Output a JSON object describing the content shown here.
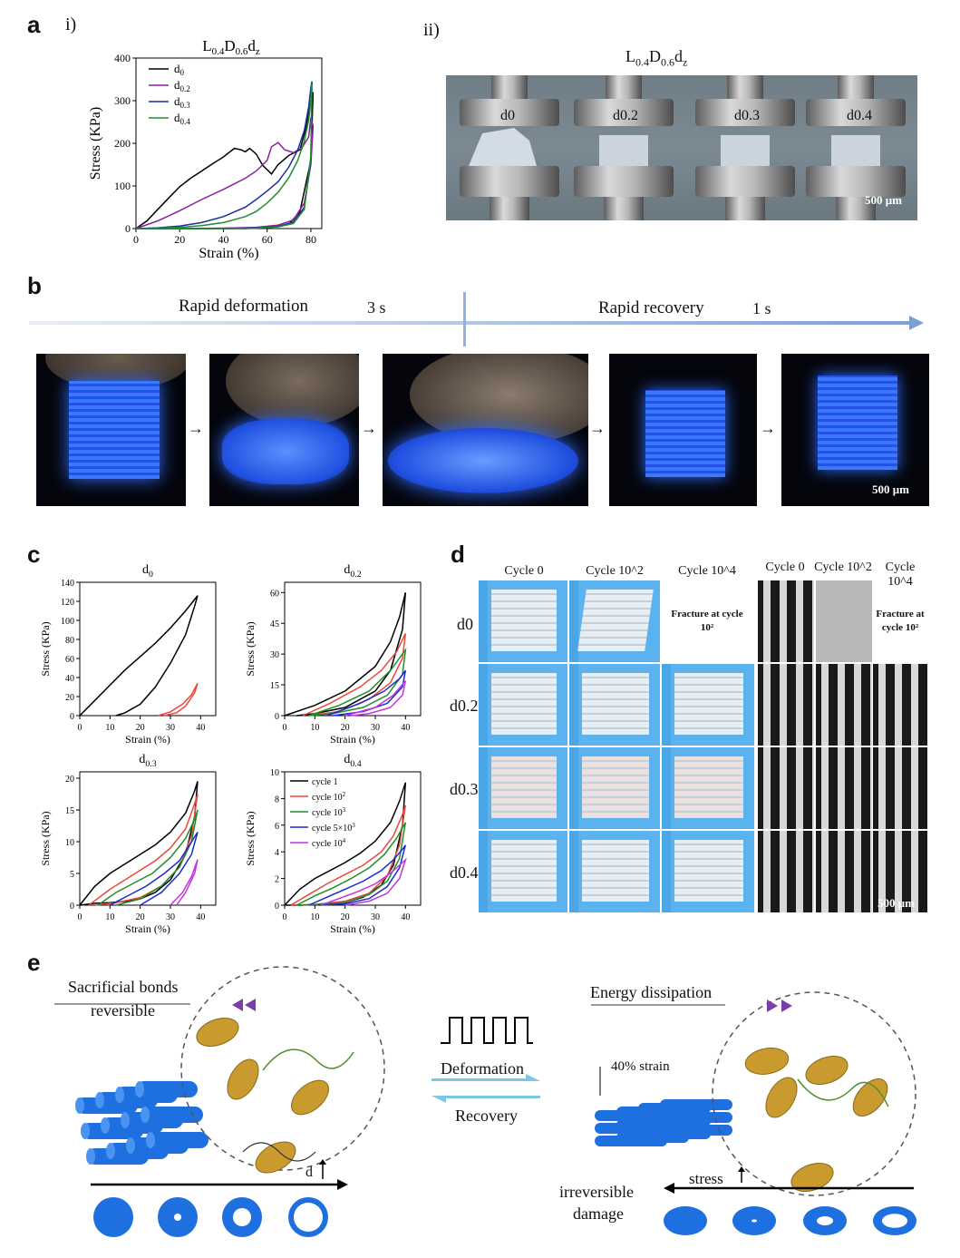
{
  "panel_a": {
    "letter": "a",
    "sub_i": "i)",
    "sub_ii": "ii)",
    "chart_title": "L0.4D0.6dz",
    "photo_title": "L0.4D0.6dz",
    "photo_labels": [
      "d0",
      "d0.2",
      "d0.3",
      "d0.4"
    ],
    "scale": "500 μm"
  },
  "panel_b": {
    "letter": "b",
    "deform_label": "Rapid deformation",
    "deform_time": "3 s",
    "recover_label": "Rapid recovery",
    "recover_time": "1 s",
    "scale": "500 μm",
    "arrow_glyph": "→"
  },
  "panel_c": {
    "letter": "c"
  },
  "panel_d": {
    "letter": "d",
    "col_headers": [
      "Cycle 0",
      "Cycle 10^2",
      "Cycle 10^4",
      "Cycle 0",
      "Cycle 10^2",
      "Cycle 10^4"
    ],
    "row_labels": [
      "d0",
      "d0.2",
      "d0.3",
      "d0.4"
    ],
    "fracture_text": "Fracture at cycle 10²",
    "scale": "500 μm"
  },
  "panel_e": {
    "letter": "e",
    "sacrificial": "Sacrificial bonds",
    "reversible": "reversible",
    "deformation": "Deformation",
    "recovery": "Recovery",
    "energy": "Energy dissipation",
    "strain": "40% strain",
    "d_label": "d",
    "stress": "stress",
    "damage_1": "irreversible",
    "damage_2": "damage"
  },
  "colors": {
    "d0": "#000000",
    "d02": "#8a1fa3",
    "d03": "#1a2f9e",
    "d04": "#1f8f2a",
    "cycle1": "#000000",
    "cycle2": "#e8493a",
    "cycle3": "#1f8f2a",
    "cycle4": "#1a2ad0",
    "cycle5": "#c533e0",
    "uv_blue": "#2f6cff",
    "tube_blue": "#1e6fe0"
  },
  "chart_data": [
    {
      "type": "line",
      "title": "L0.4D0.6dz",
      "xlabel": "Strain (%)",
      "ylabel": "Stress (KPa)",
      "xlim": [
        0,
        85
      ],
      "ylim": [
        0,
        400
      ],
      "xticks": [
        0,
        20,
        40,
        60,
        80
      ],
      "yticks": [
        0,
        100,
        200,
        300,
        400
      ],
      "legend": "top-left",
      "series": [
        {
          "name": "d0",
          "color": "#000000",
          "x": [
            0,
            5,
            10,
            15,
            20,
            25,
            30,
            35,
            40,
            45,
            48,
            50,
            52,
            55,
            58,
            62,
            65,
            70,
            75,
            78,
            80,
            81,
            80,
            75,
            70,
            60,
            50,
            40,
            30,
            20,
            10,
            5,
            0
          ],
          "y": [
            0,
            18,
            45,
            72,
            98,
            118,
            135,
            152,
            168,
            188,
            185,
            180,
            188,
            175,
            148,
            128,
            150,
            172,
            185,
            240,
            300,
            320,
            160,
            40,
            10,
            2,
            0,
            0,
            0,
            0,
            0,
            0,
            0
          ]
        },
        {
          "name": "d0.2",
          "color": "#8a1fa3",
          "x": [
            0,
            10,
            20,
            30,
            40,
            50,
            55,
            60,
            62,
            65,
            68,
            72,
            76,
            79,
            80,
            81,
            80,
            77,
            72,
            65,
            55,
            40,
            25,
            10,
            0
          ],
          "y": [
            0,
            18,
            42,
            68,
            92,
            118,
            135,
            160,
            192,
            202,
            185,
            178,
            190,
            215,
            260,
            240,
            150,
            60,
            20,
            8,
            3,
            1,
            0,
            0,
            0
          ]
        },
        {
          "name": "d0.3",
          "color": "#1a2f9e",
          "x": [
            0,
            10,
            20,
            30,
            40,
            50,
            55,
            60,
            65,
            70,
            74,
            77,
            79,
            80,
            80.5,
            80,
            77,
            72,
            65,
            55,
            40,
            20,
            0
          ],
          "y": [
            0,
            2,
            6,
            14,
            28,
            50,
            68,
            88,
            110,
            145,
            185,
            230,
            285,
            330,
            345,
            160,
            50,
            15,
            5,
            2,
            0,
            0,
            0
          ]
        },
        {
          "name": "d0.4",
          "color": "#1f8f2a",
          "x": [
            0,
            10,
            20,
            30,
            40,
            50,
            55,
            60,
            65,
            70,
            74,
            77,
            79,
            80,
            80.5,
            80,
            77,
            72,
            65,
            55,
            40,
            20,
            0
          ],
          "y": [
            0,
            1,
            3,
            7,
            14,
            28,
            40,
            60,
            85,
            120,
            160,
            205,
            255,
            300,
            340,
            170,
            45,
            12,
            4,
            1,
            0,
            0,
            0
          ]
        }
      ]
    },
    {
      "type": "line",
      "title": "d0",
      "xlabel": "Strain (%)",
      "ylabel": "Stress (KPa)",
      "xlim": [
        0,
        45
      ],
      "ylim": [
        0,
        140
      ],
      "xticks": [
        0,
        10,
        20,
        30,
        40
      ],
      "yticks": [
        0,
        20,
        40,
        60,
        80,
        100,
        120,
        140
      ],
      "series": [
        {
          "name": "cycle 1",
          "color": "#000000",
          "x": [
            0,
            5,
            10,
            15,
            20,
            25,
            30,
            35,
            38,
            39,
            38,
            35,
            30,
            25,
            20,
            15,
            12
          ],
          "y": [
            0,
            16,
            32,
            48,
            62,
            76,
            92,
            110,
            122,
            126,
            115,
            85,
            55,
            30,
            12,
            3,
            0
          ]
        },
        {
          "name": "cycle 10^2",
          "color": "#e8493a",
          "x": [
            26,
            30,
            34,
            37,
            39,
            38,
            35,
            32,
            28
          ],
          "y": [
            0,
            4,
            12,
            22,
            34,
            24,
            10,
            3,
            0
          ]
        }
      ]
    },
    {
      "type": "line",
      "title": "d0.2",
      "xlabel": "Strain (%)",
      "ylabel": "Stress (KPa)",
      "xlim": [
        0,
        45
      ],
      "ylim": [
        0,
        65
      ],
      "xticks": [
        0,
        10,
        20,
        30,
        40
      ],
      "yticks": [
        0,
        15,
        30,
        45,
        60
      ],
      "series": [
        {
          "name": "cycle 1",
          "color": "#000000",
          "x": [
            0,
            10,
            20,
            30,
            35,
            38,
            40,
            39,
            35,
            30,
            20,
            10,
            4
          ],
          "y": [
            0,
            5,
            12,
            24,
            36,
            48,
            60,
            42,
            22,
            12,
            4,
            1,
            0
          ]
        },
        {
          "name": "cycle 10^2",
          "color": "#e8493a",
          "x": [
            6,
            15,
            25,
            32,
            37,
            40,
            39,
            35,
            28,
            18,
            8
          ],
          "y": [
            0,
            6,
            14,
            22,
            31,
            40,
            28,
            16,
            8,
            2,
            0
          ]
        },
        {
          "name": "cycle 10^3",
          "color": "#1f8f2a",
          "x": [
            8,
            18,
            28,
            35,
            40,
            39,
            34,
            26,
            16,
            8
          ],
          "y": [
            0,
            5,
            12,
            22,
            32,
            20,
            10,
            4,
            1,
            0
          ]
        },
        {
          "name": "cycle 5×10^3",
          "color": "#1a2ad0",
          "x": [
            14,
            25,
            33,
            38,
            40,
            39,
            34,
            26,
            16
          ],
          "y": [
            0,
            6,
            12,
            18,
            22,
            14,
            6,
            2,
            0
          ]
        },
        {
          "name": "cycle 10^4",
          "color": "#c533e0",
          "x": [
            20,
            30,
            36,
            40,
            39,
            35,
            28,
            22
          ],
          "y": [
            0,
            4,
            10,
            17,
            10,
            4,
            1,
            0
          ]
        }
      ]
    },
    {
      "type": "line",
      "title": "d0.3",
      "xlabel": "Strain (%)",
      "ylabel": "Stress (KPa)",
      "xlim": [
        0,
        45
      ],
      "ylim": [
        0,
        21
      ],
      "xticks": [
        0,
        10,
        20,
        30,
        40
      ],
      "yticks": [
        0,
        5,
        10,
        15,
        20
      ],
      "series": [
        {
          "name": "cycle 1",
          "color": "#000000",
          "x": [
            0,
            5,
            10,
            15,
            20,
            25,
            30,
            35,
            38,
            39,
            38,
            35,
            30,
            25,
            20,
            15,
            10,
            5,
            0
          ],
          "y": [
            0,
            3,
            5,
            6.5,
            8,
            9.5,
            11.5,
            14.5,
            18,
            19.5,
            14,
            8,
            4,
            2,
            1,
            0.6,
            0.4,
            0.3,
            0
          ]
        },
        {
          "name": "cycle 10^2",
          "color": "#e8493a",
          "x": [
            3,
            10,
            15,
            20,
            25,
            30,
            35,
            38,
            39,
            37,
            33,
            27,
            20,
            12,
            5
          ],
          "y": [
            0,
            2.5,
            4,
            5.5,
            7,
            9,
            12,
            16,
            17.5,
            11,
            6,
            3,
            1.2,
            0.4,
            0
          ]
        },
        {
          "name": "cycle 10^3",
          "color": "#1f8f2a",
          "x": [
            6,
            12,
            18,
            24,
            30,
            35,
            38,
            39,
            37,
            33,
            27,
            20,
            12
          ],
          "y": [
            0,
            2,
            3.5,
            5,
            7.5,
            10.5,
            13.5,
            15,
            10,
            6,
            3,
            1,
            0
          ]
        },
        {
          "name": "cycle 5×10^3",
          "color": "#1a2ad0",
          "x": [
            10,
            16,
            22,
            28,
            33,
            37,
            39,
            37,
            33,
            27,
            20
          ],
          "y": [
            0,
            1.5,
            3,
            5,
            7,
            10,
            11.5,
            8,
            5,
            2,
            0
          ]
        },
        {
          "name": "cycle 10^4",
          "color": "#c533e0",
          "x": [
            30,
            34,
            37,
            39,
            38,
            35,
            32
          ],
          "y": [
            0,
            2,
            4.5,
            7.2,
            5,
            2,
            0
          ]
        }
      ]
    },
    {
      "type": "line",
      "title": "d0.4",
      "xlabel": "Strain (%)",
      "ylabel": "Stress (KPa)",
      "xlim": [
        0,
        45
      ],
      "ylim": [
        0,
        10
      ],
      "xticks": [
        0,
        10,
        20,
        30,
        40
      ],
      "yticks": [
        0,
        2,
        4,
        6,
        8,
        10
      ],
      "legend": "top-left",
      "series": [
        {
          "name": "cycle 1",
          "color": "#000000",
          "x": [
            0,
            5,
            10,
            15,
            20,
            25,
            30,
            35,
            38,
            40,
            39,
            36,
            32,
            26,
            20,
            12,
            5,
            0
          ],
          "y": [
            0,
            1.2,
            2,
            2.6,
            3.2,
            3.9,
            4.8,
            6.2,
            7.8,
            9.2,
            6,
            3,
            1.5,
            0.6,
            0.2,
            0.05,
            0,
            0
          ]
        },
        {
          "name": "cycle 10^2",
          "color": "#e8493a",
          "x": [
            2,
            8,
            14,
            20,
            26,
            32,
            36,
            39,
            40,
            38,
            34,
            28,
            20,
            10,
            2
          ],
          "y": [
            0,
            0.8,
            1.6,
            2.3,
            3,
            4,
            5.2,
            6.8,
            7.5,
            4.5,
            2.2,
            0.9,
            0.3,
            0.05,
            0
          ]
        },
        {
          "name": "cycle 10^3",
          "color": "#1f8f2a",
          "x": [
            4,
            10,
            16,
            22,
            28,
            33,
            37,
            40,
            38,
            34,
            28,
            20,
            10,
            4
          ],
          "y": [
            0,
            0.7,
            1.3,
            2,
            2.8,
            3.8,
            5,
            6.2,
            3.5,
            1.8,
            0.8,
            0.2,
            0.05,
            0
          ]
        },
        {
          "name": "cycle 5×10^3",
          "color": "#1a2ad0",
          "x": [
            8,
            14,
            20,
            26,
            32,
            36,
            39,
            40,
            38,
            34,
            28,
            20,
            12
          ],
          "y": [
            0,
            0.6,
            1.2,
            1.8,
            2.6,
            3.4,
            4.2,
            4.5,
            2.8,
            1.4,
            0.5,
            0.1,
            0
          ]
        },
        {
          "name": "cycle 10^4",
          "color": "#c533e0",
          "x": [
            12,
            18,
            24,
            30,
            35,
            38,
            40,
            38,
            34,
            28,
            20
          ],
          "y": [
            0,
            0.5,
            1,
            1.6,
            2.4,
            3,
            3.4,
            2,
            0.9,
            0.3,
            0
          ]
        }
      ]
    }
  ]
}
